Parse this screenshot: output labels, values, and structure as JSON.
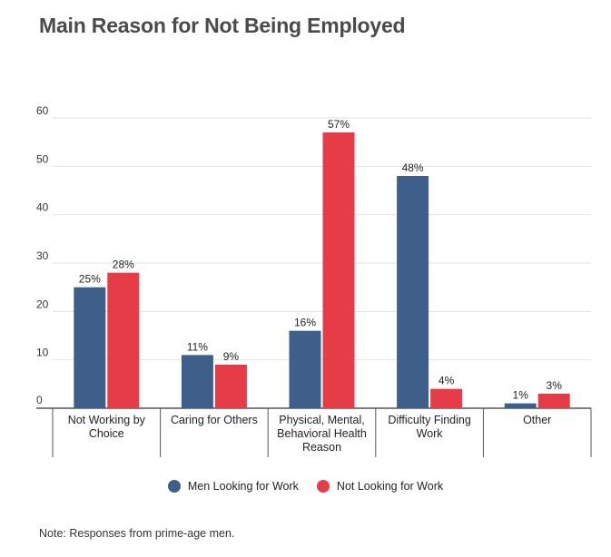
{
  "chart_data": {
    "type": "bar",
    "title": "Main Reason for Not Being Employed",
    "categories": [
      [
        "Not Working by",
        "Choice"
      ],
      [
        "Caring for Others"
      ],
      [
        "Physical, Mental,",
        "Behavioral Health",
        "Reason"
      ],
      [
        "Difficulty Finding",
        "Work"
      ],
      [
        "Other"
      ]
    ],
    "series": [
      {
        "name": "Men Looking for Work",
        "color": "#3d5f8a",
        "values": [
          25,
          11,
          16,
          48,
          1
        ]
      },
      {
        "name": "Not Looking for Work",
        "color": "#e63c48",
        "values": [
          28,
          9,
          57,
          4,
          3
        ]
      }
    ],
    "value_suffix": "%",
    "ylim": [
      0,
      60
    ],
    "yticks": [
      0,
      10,
      20,
      30,
      40,
      50,
      60
    ],
    "grid": true,
    "legend_position": "bottom-center",
    "note": "Note: Responses from prime-age men."
  }
}
